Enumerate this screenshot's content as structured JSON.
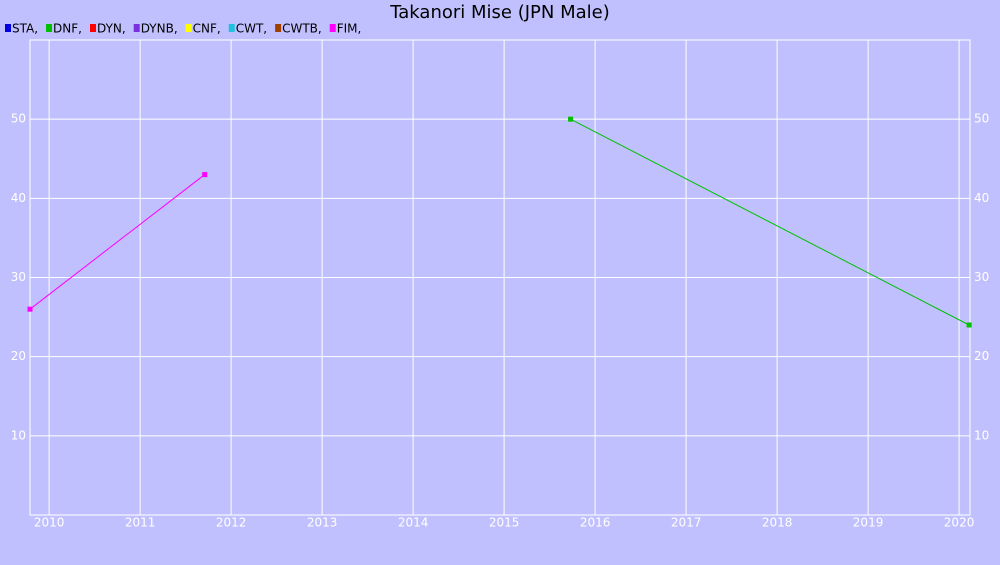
{
  "chart_data": {
    "type": "line",
    "title": "Takanori Mise (JPN Male)",
    "series": [
      {
        "name": "STA,",
        "color": "#0000e0",
        "x": [],
        "values": []
      },
      {
        "name": "DNF,",
        "color": "#00c000",
        "x": [
          2015.73,
          2020.11
        ],
        "values": [
          50,
          24
        ]
      },
      {
        "name": "DYN,",
        "color": "#ff0000",
        "x": [],
        "values": []
      },
      {
        "name": "DYNB,",
        "color": "#7a30e0",
        "x": [],
        "values": []
      },
      {
        "name": "CNF,",
        "color": "#ffff00",
        "x": [],
        "values": []
      },
      {
        "name": "CWT,",
        "color": "#20c0e0",
        "x": [],
        "values": []
      },
      {
        "name": "CWTB,",
        "color": "#a04000",
        "x": [],
        "values": []
      },
      {
        "name": "FIM,",
        "color": "#ff00ff",
        "x": [
          2009.79,
          2011.71
        ],
        "values": [
          26,
          43
        ]
      }
    ],
    "xlim": [
      2009.79,
      2020.12
    ],
    "xticks": [
      2010,
      2011,
      2012,
      2013,
      2014,
      2015,
      2016,
      2017,
      2018,
      2019,
      2020
    ],
    "ylim": [
      0,
      60
    ],
    "yticks": [
      10,
      20,
      30,
      40,
      50
    ],
    "grid": true
  }
}
